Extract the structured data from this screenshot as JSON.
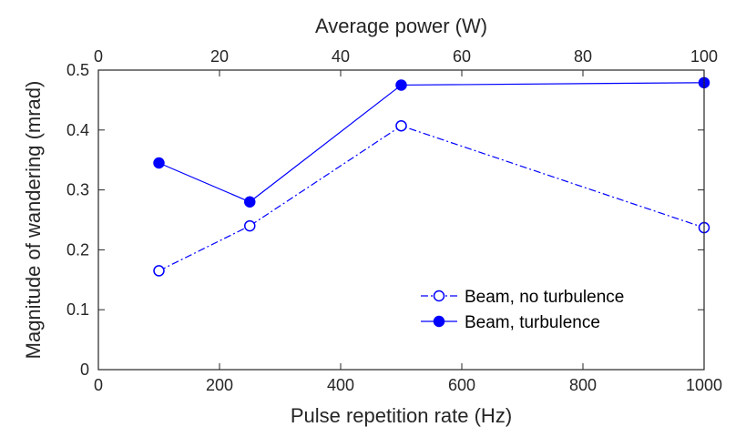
{
  "chart_data": {
    "type": "line",
    "title": "",
    "xlabel": "Pulse repetition rate (Hz)",
    "ylabel": "Magnitude of wandering (mrad)",
    "x2label": "Average power (W)",
    "xlim": [
      0,
      1000
    ],
    "ylim": [
      0,
      0.5
    ],
    "x2lim": [
      0,
      100
    ],
    "xticks": [
      0,
      200,
      400,
      600,
      800,
      1000
    ],
    "x2ticks": [
      0,
      20,
      40,
      60,
      80,
      100
    ],
    "yticks": [
      0,
      0.1,
      0.2,
      0.3,
      0.4,
      0.5
    ],
    "xtick_labels": [
      "0",
      "200",
      "400",
      "600",
      "800",
      "1000"
    ],
    "x2tick_labels": [
      "0",
      "20",
      "40",
      "60",
      "80",
      "100"
    ],
    "ytick_labels": [
      "0",
      "0.1",
      "0.2",
      "0.3",
      "0.4",
      "0.5"
    ],
    "grid": false,
    "legend_position": "bottom-right",
    "series": [
      {
        "name": "Beam, no turbulence",
        "x": [
          100,
          250,
          500,
          1000
        ],
        "y": [
          0.165,
          0.24,
          0.407,
          0.237
        ],
        "color": "#0000ff",
        "line_style": "dash-dot",
        "marker": "open-circle"
      },
      {
        "name": "Beam, turbulence",
        "x": [
          100,
          250,
          500,
          1000
        ],
        "y": [
          0.345,
          0.28,
          0.475,
          0.479
        ],
        "color": "#0000ff",
        "line_style": "solid",
        "marker": "filled-circle"
      }
    ]
  }
}
